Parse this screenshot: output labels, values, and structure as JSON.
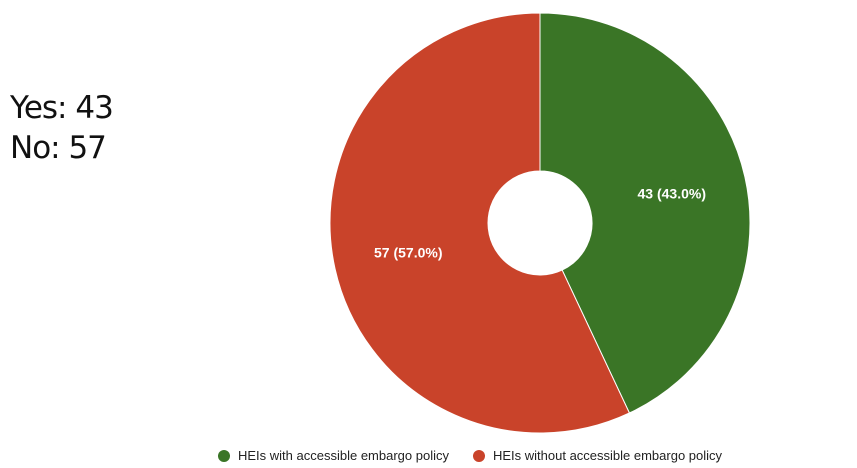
{
  "summary": {
    "yes_text": "Yes: 43",
    "no_text": "No: 57"
  },
  "chart_data": {
    "type": "pie",
    "donut": true,
    "categories": [
      "HEIs with accessible embargo policy",
      "HEIs without accessible embargo policy"
    ],
    "values": [
      43,
      57
    ],
    "data_labels": [
      "43 (43.0%)",
      "57 (57.0%)"
    ],
    "colors": [
      "#3a7526",
      "#c9432a"
    ],
    "legend_position": "bottom",
    "title": ""
  }
}
